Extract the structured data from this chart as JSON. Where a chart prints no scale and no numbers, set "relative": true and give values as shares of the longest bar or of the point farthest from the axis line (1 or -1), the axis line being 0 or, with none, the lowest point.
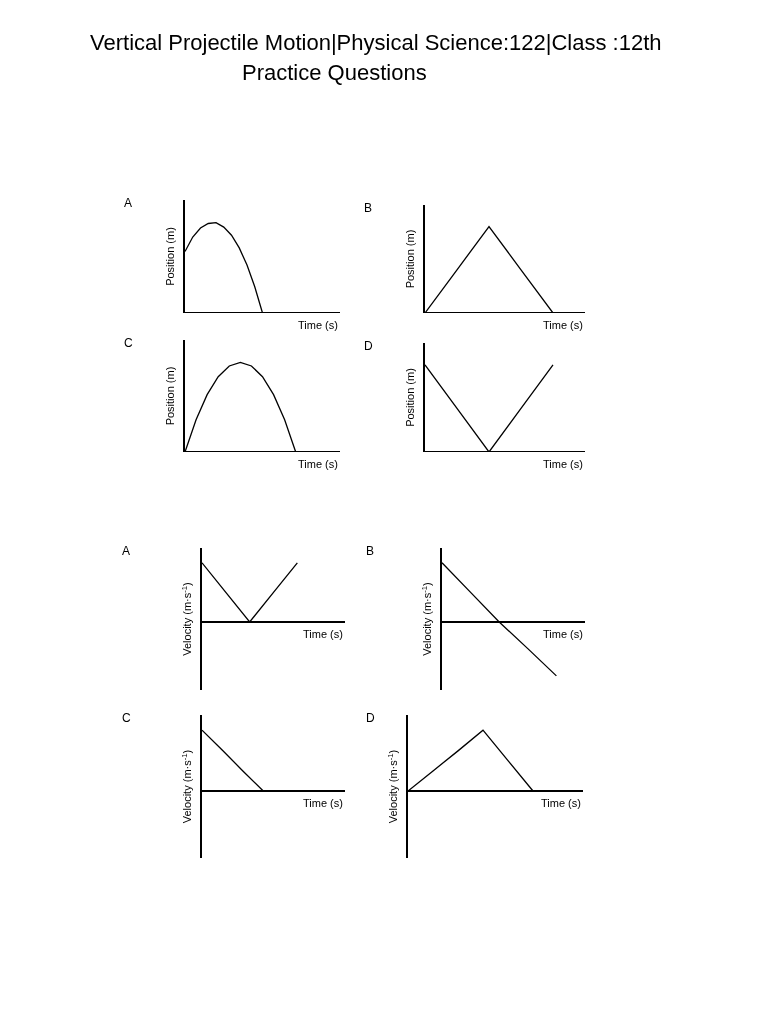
{
  "chart_data": [
    {
      "type": "line",
      "title": "A",
      "xlabel": "Time (s)",
      "ylabel": "Position (m)",
      "relative": true,
      "annotations": [
        "Vertical Projectile Motion|Physical Science:122|Class :12th",
        "Practice Questions"
      ],
      "categories": [
        null,
        null,
        null,
        null,
        null,
        null,
        null,
        null,
        null,
        null,
        null,
        null,
        null,
        null,
        null,
        null,
        null,
        null,
        null,
        null,
        null
      ],
      "series": [
        {
          "color": "#000000",
          "values": [
            0.68,
            0.84,
            0.94,
            0.99,
            1,
            0.95,
            0.86,
            0.72,
            0.53,
            0.29,
            0,
            null,
            null,
            null,
            null,
            null,
            null,
            null,
            null,
            null,
            null
          ]
        }
      ]
    },
    {
      "type": "line",
      "title": "B",
      "xlabel": "Time (s)",
      "ylabel": "Position (m)",
      "relative": true,
      "categories": [
        null,
        null,
        null,
        null,
        null,
        null
      ],
      "series": [
        {
          "color": "#000000",
          "values": [
            0,
            0.5,
            1,
            0.5,
            0,
            null
          ]
        }
      ]
    },
    {
      "type": "line",
      "title": "C",
      "xlabel": "Time (s)",
      "ylabel": "Position (m)",
      "relative": true,
      "categories": [
        null,
        null,
        null,
        null,
        null,
        null,
        null,
        null,
        null,
        null,
        null,
        null,
        null,
        null,
        null
      ],
      "series": [
        {
          "color": "#000000",
          "values": [
            0,
            0.36,
            0.64,
            0.84,
            0.96,
            1,
            0.96,
            0.84,
            0.64,
            0.36,
            0,
            null,
            null,
            null,
            null
          ]
        }
      ]
    },
    {
      "type": "line",
      "title": "D",
      "xlabel": "Time (s)",
      "ylabel": "Position (m)",
      "relative": true,
      "categories": [
        null,
        null,
        null,
        null,
        null,
        null
      ],
      "series": [
        {
          "color": "#000000",
          "values": [
            1,
            0.5,
            0,
            0.5,
            1,
            null
          ]
        }
      ]
    },
    {
      "type": "line",
      "title": "A",
      "xlabel": "Time (s)",
      "ylabel": "Velocity (m·s$^{-1}$)",
      "relative": true,
      "categories": [
        null,
        null,
        null,
        null,
        null,
        null,
        null
      ],
      "series": [
        {
          "color": "#000000",
          "values": [
            1,
            0.5,
            0,
            0.5,
            1,
            null,
            null
          ]
        }
      ]
    },
    {
      "type": "line",
      "title": "B",
      "xlabel": "Time (s)",
      "ylabel": "Velocity (m·s$^{-1}$)",
      "relative": true,
      "categories": [
        null,
        null,
        null,
        null,
        null,
        null
      ],
      "series": [
        {
          "color": "#000000",
          "values": [
            1,
            0.5,
            0,
            -0.45,
            -0.91,
            null
          ]
        }
      ]
    },
    {
      "type": "line",
      "title": "C",
      "xlabel": "Time (s)",
      "ylabel": "Velocity (m·s$^{-1}$)",
      "relative": true,
      "categories": [
        null,
        null,
        null,
        null,
        null,
        null,
        null,
        null
      ],
      "series": [
        {
          "color": "#000000",
          "values": [
            1,
            0.67,
            0.33,
            0,
            null,
            null,
            null,
            null
          ]
        }
      ]
    },
    {
      "type": "line",
      "title": "D",
      "xlabel": "Time (s)",
      "ylabel": "Velocity (m·s$^{-1}$)",
      "relative": true,
      "categories": [
        null,
        null,
        null,
        null,
        null,
        null,
        null,
        null
      ],
      "series": [
        {
          "color": "#000000",
          "values": [
            0,
            0.33,
            0.66,
            1,
            0.5,
            0,
            null,
            null
          ]
        }
      ]
    }
  ]
}
